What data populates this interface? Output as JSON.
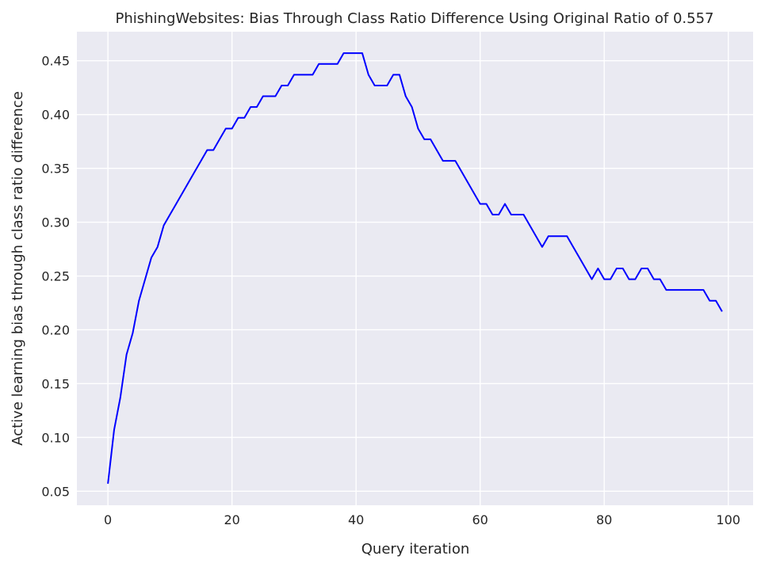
{
  "chart_data": {
    "type": "line",
    "title": "PhishingWebsites: Bias Through Class Ratio Difference Using Original Ratio of 0.557",
    "xlabel": "Query iteration",
    "ylabel": "Active learning bias through class ratio difference",
    "xlim": [
      -5,
      104
    ],
    "ylim": [
      0.037,
      0.477
    ],
    "xticks": [
      0,
      20,
      40,
      60,
      80,
      100
    ],
    "yticks": [
      0.05,
      0.1,
      0.15,
      0.2,
      0.25,
      0.3,
      0.35,
      0.4,
      0.45
    ],
    "ytick_labels": [
      "0.05",
      "0.10",
      "0.15",
      "0.20",
      "0.25",
      "0.30",
      "0.35",
      "0.40",
      "0.45"
    ],
    "grid": true,
    "background": "#eaeaf2",
    "line_color": "#0000ff",
    "series": [
      {
        "x": [
          0,
          1,
          2,
          3,
          4,
          5,
          6,
          7,
          8,
          9,
          10,
          11,
          12,
          13,
          14,
          15,
          16,
          17,
          18,
          19,
          20,
          21,
          22,
          23,
          24,
          25,
          26,
          27,
          28,
          29,
          30,
          31,
          32,
          33,
          34,
          35,
          36,
          37,
          38,
          39,
          40,
          41,
          42,
          43,
          44,
          45,
          46,
          47,
          48,
          49,
          50,
          51,
          52,
          53,
          54,
          55,
          56,
          57,
          58,
          59,
          60,
          61,
          62,
          63,
          64,
          65,
          66,
          67,
          68,
          69,
          70,
          71,
          72,
          73,
          74,
          75,
          76,
          77,
          78,
          79,
          80,
          81,
          82,
          83,
          84,
          85,
          86,
          87,
          88,
          89,
          90,
          91,
          92,
          93,
          94,
          95,
          96,
          97,
          98,
          99
        ],
        "y": [
          0.057,
          0.107,
          0.137,
          0.177,
          0.197,
          0.227,
          0.247,
          0.267,
          0.277,
          0.297,
          0.307,
          0.317,
          0.327,
          0.337,
          0.347,
          0.357,
          0.367,
          0.367,
          0.377,
          0.387,
          0.387,
          0.397,
          0.397,
          0.407,
          0.407,
          0.417,
          0.417,
          0.417,
          0.427,
          0.427,
          0.437,
          0.437,
          0.437,
          0.437,
          0.447,
          0.447,
          0.447,
          0.447,
          0.457,
          0.457,
          0.457,
          0.457,
          0.437,
          0.427,
          0.427,
          0.427,
          0.437,
          0.437,
          0.417,
          0.407,
          0.387,
          0.377,
          0.377,
          0.367,
          0.357,
          0.357,
          0.357,
          0.347,
          0.337,
          0.327,
          0.317,
          0.317,
          0.307,
          0.307,
          0.317,
          0.307,
          0.307,
          0.307,
          0.297,
          0.287,
          0.277,
          0.287,
          0.287,
          0.287,
          0.287,
          0.277,
          0.267,
          0.257,
          0.247,
          0.257,
          0.247,
          0.247,
          0.257,
          0.257,
          0.247,
          0.247,
          0.257,
          0.257,
          0.247,
          0.247,
          0.237,
          0.237,
          0.237,
          0.237,
          0.237,
          0.237,
          0.237,
          0.227,
          0.227,
          0.217
        ]
      }
    ]
  }
}
